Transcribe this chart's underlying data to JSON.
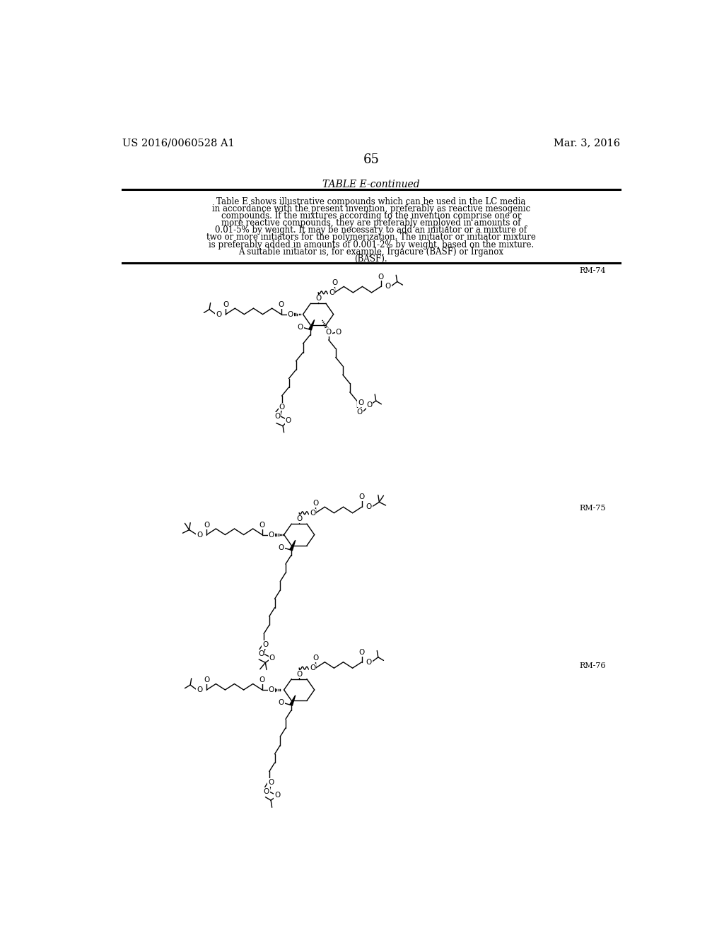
{
  "background_color": "#ffffff",
  "header_left": "US 2016/0060528 A1",
  "header_right": "Mar. 3, 2016",
  "page_number": "65",
  "table_title": "TABLE E-continued",
  "desc_lines": [
    "Table E shows illustrative compounds which can be used in the LC media",
    "in accordance with the present invention, preferably as reactive mesogenic",
    "compounds. If the mixtures according to the invention comprise one or",
    "more reactive compounds, they are preferably employed in amounts of",
    "0.01-5% by weight. It may be necessary to add an initiator or a mixture of",
    "two or more initiators for the polymerization. The initiator or initiator mixture",
    "is preferably added in amounts of 0.001-2% by weight, based on the mixture.",
    "A suitable initiator is, for example, Irgacure (BASF) or Irganox",
    "(BASF)."
  ],
  "rm74_label": "RM-74",
  "rm75_label": "RM-75",
  "rm76_label": "RM-76"
}
